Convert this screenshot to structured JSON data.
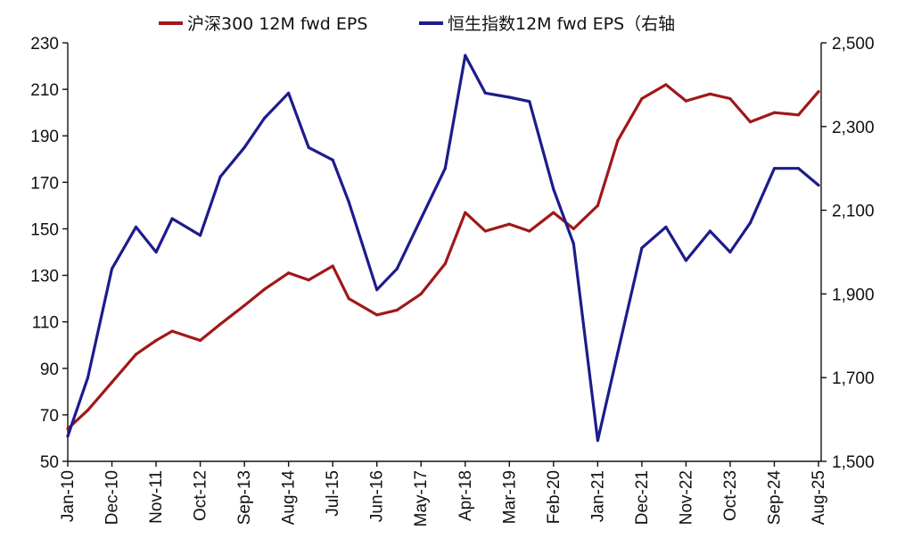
{
  "chart_data": {
    "type": "line",
    "title": "",
    "xlabel": "",
    "ylabel": "",
    "y2label": "",
    "x_tick_labels": [
      "Jan-10",
      "Dec-10",
      "Nov-11",
      "Oct-12",
      "Sep-13",
      "Aug-14",
      "Jul-15",
      "Jun-16",
      "May-17",
      "Apr-18",
      "Mar-19",
      "Feb-20",
      "Jan-21",
      "Dec-21",
      "Nov-22",
      "Oct-23",
      "Sep-24",
      "Aug-25"
    ],
    "ylim": [
      50,
      230
    ],
    "y_ticks": [
      "50",
      "70",
      "90",
      "110",
      "130",
      "150",
      "170",
      "190",
      "210",
      "230"
    ],
    "y2lim": [
      1500,
      2500
    ],
    "y2_ticks": [
      "1,500",
      "1,700",
      "1,900",
      "2,100",
      "2,300",
      "2,500"
    ],
    "grid": false,
    "legend_position": "top-center",
    "series": [
      {
        "name": "沪深300 12M fwd EPS",
        "axis": "left",
        "color": "#A01818",
        "x": [
          "Jan-10",
          "Jun-10",
          "Dec-10",
          "Jun-11",
          "Nov-11",
          "Mar-12",
          "Oct-12",
          "Mar-13",
          "Sep-13",
          "Feb-14",
          "Aug-14",
          "Jan-15",
          "Jul-15",
          "Nov-15",
          "Jun-16",
          "Nov-16",
          "May-17",
          "Nov-17",
          "Apr-18",
          "Sep-18",
          "Mar-19",
          "Aug-19",
          "Feb-20",
          "Jul-20",
          "Jan-21",
          "Jun-21",
          "Dec-21",
          "Jun-22",
          "Nov-22",
          "May-23",
          "Oct-23",
          "Mar-24",
          "Sep-24",
          "Mar-25",
          "Aug-25"
        ],
        "values": [
          64,
          72,
          84,
          96,
          102,
          106,
          102,
          109,
          117,
          124,
          131,
          128,
          134,
          120,
          113,
          115,
          122,
          135,
          157,
          149,
          152,
          149,
          157,
          150,
          160,
          188,
          206,
          212,
          205,
          208,
          206,
          196,
          200,
          199,
          209
        ]
      },
      {
        "name": "恒生指数12M fwd EPS（右轴",
        "axis": "right",
        "color": "#1C1C8C",
        "x": [
          "Jan-10",
          "Jun-10",
          "Dec-10",
          "Jun-11",
          "Nov-11",
          "Mar-12",
          "Oct-12",
          "Mar-13",
          "Sep-13",
          "Feb-14",
          "Aug-14",
          "Jan-15",
          "Jul-15",
          "Nov-15",
          "Jun-16",
          "Nov-16",
          "May-17",
          "Nov-17",
          "Apr-18",
          "Sep-18",
          "Mar-19",
          "Aug-19",
          "Feb-20",
          "Jul-20",
          "Jan-21",
          "Jun-21",
          "Dec-21",
          "Jun-22",
          "Nov-22",
          "May-23",
          "Oct-23",
          "Mar-24",
          "Sep-24",
          "Mar-25",
          "Aug-25"
        ],
        "values": [
          1560,
          1700,
          1960,
          2060,
          2000,
          2080,
          2040,
          2180,
          2250,
          2320,
          2380,
          2250,
          2220,
          2120,
          1910,
          1960,
          2080,
          2200,
          2470,
          2380,
          2370,
          2360,
          2150,
          2020,
          1550,
          1760,
          2010,
          2060,
          1980,
          2050,
          2000,
          2070,
          2200,
          2200,
          2160
        ]
      }
    ]
  }
}
